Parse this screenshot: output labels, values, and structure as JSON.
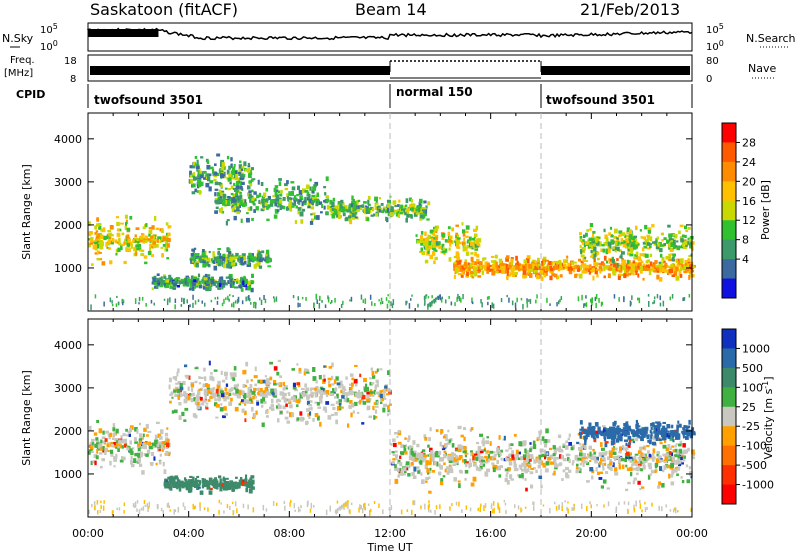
{
  "header": {
    "station": "Saskatoon (fitACF)",
    "beam": "Beam 14",
    "date": "21/Feb/2013"
  },
  "panels": {
    "nsky_label": "N.Sky",
    "nsky_ticks": [
      "10^5",
      "10^0"
    ],
    "nsearch_label": "N.Search",
    "nsearch_ticks": [
      "10^5",
      "10^0"
    ],
    "freq_label": "Freq.",
    "freq_unit": "[MHz]",
    "freq_ticks": [
      "18",
      "8"
    ],
    "nave_label": "Nave",
    "nave_ticks": [
      "80",
      "0"
    ],
    "cpid_label": "CPID",
    "cpid_segments": [
      {
        "name": "twofsound 3501",
        "start_h": 0,
        "end_h": 12
      },
      {
        "name": "normal 150",
        "start_h": 12,
        "end_h": 18
      },
      {
        "name": "twofsound 3501",
        "start_h": 18,
        "end_h": 24
      }
    ]
  },
  "chart_data": [
    {
      "type": "heatmap",
      "quantity": "Power",
      "ylabel": "Slant Range [km]",
      "xlabel": "Time UT",
      "x_ticks": [
        "00:00",
        "04:00",
        "08:00",
        "12:00",
        "16:00",
        "20:00",
        "00:00"
      ],
      "x_range_hours": [
        0,
        24
      ],
      "y_ticks": [
        1000,
        2000,
        3000,
        4000
      ],
      "ylim": [
        0,
        4600
      ],
      "colorbar_label": "Power [dB]",
      "colorbar_ticks": [
        "28",
        "24",
        "20",
        "16",
        "12",
        "8",
        "4"
      ],
      "colorbar_colors": [
        "#ff0000",
        "#ff5a00",
        "#ff8c00",
        "#ffc000",
        "#c8d800",
        "#30c030",
        "#3c9a6a",
        "#3c6aa0",
        "#1010e0"
      ],
      "echo_regions": [
        {
          "t0": 0,
          "t1": 3.2,
          "r_center": 1700,
          "r_width": 650,
          "power_db": 18
        },
        {
          "t0": 4.0,
          "t1": 6.5,
          "r_center": 3200,
          "r_width": 500,
          "power_db": 10
        },
        {
          "t0": 5.0,
          "t1": 9.5,
          "r_center": 2600,
          "r_width": 600,
          "power_db": 10
        },
        {
          "t0": 9.5,
          "t1": 13.5,
          "r_center": 2400,
          "r_width": 300,
          "power_db": 12
        },
        {
          "t0": 13.0,
          "t1": 15.5,
          "r_center": 1600,
          "r_width": 500,
          "power_db": 16
        },
        {
          "t0": 14.5,
          "t1": 24,
          "r_center": 1050,
          "r_width": 300,
          "power_db": 22
        },
        {
          "t0": 19.5,
          "t1": 24,
          "r_center": 1600,
          "r_width": 500,
          "power_db": 14
        },
        {
          "t0": 4.0,
          "t1": 7.2,
          "r_center": 1250,
          "r_width": 250,
          "power_db": 10
        },
        {
          "t0": 2.5,
          "t1": 6.5,
          "r_center": 700,
          "r_width": 200,
          "power_db": 8
        }
      ]
    },
    {
      "type": "heatmap",
      "quantity": "Velocity",
      "ylabel": "Slant Range [km]",
      "xlabel": "Time UT",
      "x_ticks": [
        "00:00",
        "04:00",
        "08:00",
        "12:00",
        "16:00",
        "20:00",
        "00:00"
      ],
      "x_range_hours": [
        0,
        24
      ],
      "y_ticks": [
        1000,
        2000,
        3000,
        4000
      ],
      "ylim": [
        0,
        4600
      ],
      "colorbar_label": "Velocity [m s^-1]",
      "colorbar_ticks": [
        "1000",
        "500",
        "100",
        "25",
        "-25",
        "-100",
        "-500",
        "-1000"
      ],
      "colorbar_colors": [
        "#1030c0",
        "#2a6aa8",
        "#3c8a6a",
        "#40b040",
        "#c8c8c0",
        "#ffa000",
        "#ff7000",
        "#ff3000",
        "#ff0000"
      ],
      "echo_regions": [
        {
          "t0": 0,
          "t1": 3.2,
          "r_center": 1700,
          "r_width": 650,
          "velocity": 0
        },
        {
          "t0": 3.2,
          "t1": 12,
          "r_center": 2900,
          "r_width": 800,
          "velocity": 0
        },
        {
          "t0": 12,
          "t1": 24,
          "r_center": 1400,
          "r_width": 800,
          "velocity": 0
        },
        {
          "t0": 3.0,
          "t1": 6.5,
          "r_center": 800,
          "r_width": 200,
          "velocity": 200
        },
        {
          "t0": 19.5,
          "t1": 24,
          "r_center": 2000,
          "r_width": 300,
          "velocity": 600
        }
      ]
    }
  ]
}
